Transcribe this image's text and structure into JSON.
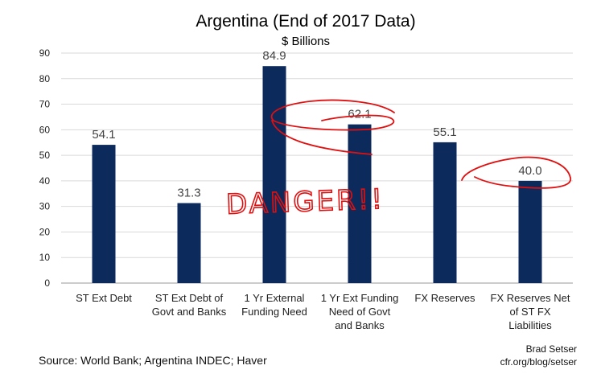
{
  "chart_data": {
    "type": "bar",
    "title": "Argentina (End of 2017 Data)",
    "subtitle": "$ Billions",
    "categories": [
      [
        "ST Ext Debt"
      ],
      [
        "ST Ext Debt of",
        "Govt and Banks"
      ],
      [
        "1 Yr External",
        "Funding Need"
      ],
      [
        "1 Yr Ext Funding",
        "Need of Govt",
        "and Banks"
      ],
      [
        "FX Reserves"
      ],
      [
        "FX Reserves Net",
        "of ST FX",
        "Liabilities"
      ]
    ],
    "values": [
      54.1,
      31.3,
      84.9,
      62.1,
      55.1,
      40.0
    ],
    "data_labels": [
      "54.1",
      "31.3",
      "84.9",
      "62.1",
      "55.1",
      "40.0"
    ],
    "ylim": [
      0,
      90
    ],
    "yticks": [
      0,
      10,
      20,
      30,
      40,
      50,
      60,
      70,
      80,
      90
    ],
    "grid": true,
    "bar_color": "#0d2a5c",
    "annotation_text": "DANGER!!",
    "annotation_color": "#e01010"
  },
  "footer": {
    "source": "Source: World Bank; Argentina INDEC; Haver",
    "author": "Brad Setser",
    "blog": "cfr.org/blog/setser"
  }
}
